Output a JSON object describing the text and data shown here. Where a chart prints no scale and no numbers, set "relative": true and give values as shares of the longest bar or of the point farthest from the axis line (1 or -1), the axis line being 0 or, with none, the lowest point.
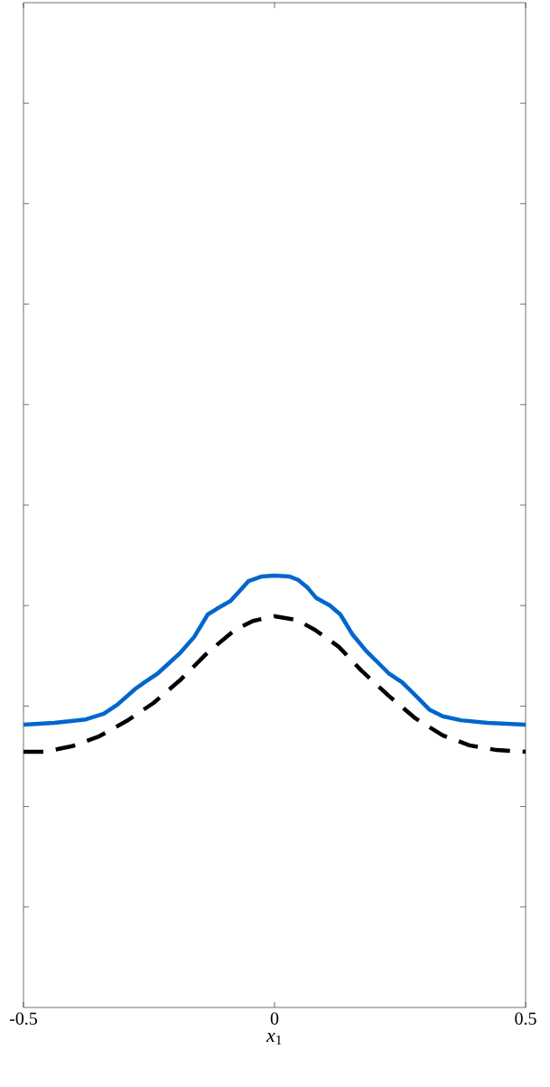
{
  "chart_data": {
    "type": "line",
    "relative": true,
    "xlabel": "*x*$_{1}$",
    "xlim": [
      -0.5,
      0.5
    ],
    "xticks": [
      -0.5,
      0,
      0.5
    ],
    "tick_labels": "x",
    "series": [
      {
        "color": "#0066cc",
        "line_style": "solid",
        "x": [
          -0.5,
          -0.439,
          -0.376,
          -0.34,
          -0.313,
          -0.277,
          -0.259,
          -0.232,
          -0.187,
          -0.16,
          -0.133,
          -0.115,
          -0.088,
          -0.076,
          -0.052,
          -0.025,
          0,
          0.029,
          0.047,
          0.065,
          0.083,
          0.11,
          0.131,
          0.155,
          0.182,
          0.209,
          0.227,
          0.254,
          0.281,
          0.308,
          0.335,
          0.371,
          0.424,
          0.5
        ],
        "values": [
          0.655,
          0.659,
          0.667,
          0.68,
          0.701,
          0.738,
          0.753,
          0.774,
          0.822,
          0.858,
          0.91,
          0.923,
          0.941,
          0.956,
          0.987,
          0.998,
          1,
          0.998,
          0.99,
          0.973,
          0.948,
          0.931,
          0.91,
          0.864,
          0.826,
          0.795,
          0.774,
          0.753,
          0.722,
          0.69,
          0.674,
          0.665,
          0.659,
          0.655
        ]
      },
      {
        "color": "#000000",
        "line_style": "dashed",
        "x": [
          -0.5,
          -0.457,
          -0.403,
          -0.349,
          -0.295,
          -0.241,
          -0.187,
          -0.133,
          -0.079,
          -0.043,
          0,
          0.045,
          0.081,
          0.128,
          0.173,
          0.227,
          0.281,
          0.335,
          0.388,
          0.442,
          0.5
        ],
        "values": [
          0.592,
          0.592,
          0.605,
          0.628,
          0.663,
          0.705,
          0.759,
          0.822,
          0.874,
          0.895,
          0.906,
          0.897,
          0.874,
          0.835,
          0.78,
          0.722,
          0.669,
          0.63,
          0.607,
          0.596,
          0.592
        ]
      }
    ]
  }
}
